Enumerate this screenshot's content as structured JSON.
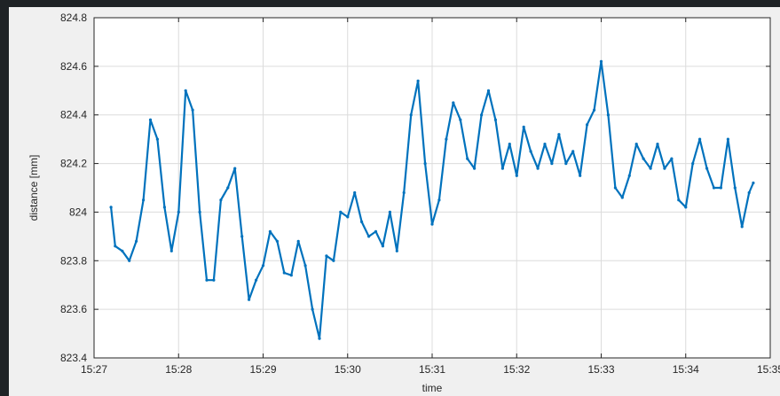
{
  "chart_data": {
    "type": "scatter",
    "title": "",
    "xlabel": "time",
    "ylabel": "distance [mm]",
    "x_unit": "clock time (HH:MM)",
    "xlim": [
      "15:27",
      "15:35"
    ],
    "ylim": [
      823.4,
      824.8
    ],
    "x_ticks": [
      "15:27",
      "15:28",
      "15:29",
      "15:30",
      "15:31",
      "15:32",
      "15:33",
      "15:34",
      "15:35"
    ],
    "y_ticks": [
      823.4,
      823.6,
      823.8,
      824,
      824.2,
      824.4,
      824.6,
      824.8
    ],
    "y_tick_labels": [
      "823.4",
      "823.6",
      "823.8",
      "824",
      "824.2",
      "824.4",
      "824.6",
      "824.8"
    ],
    "grid": true,
    "series": [
      {
        "color": "#0072bd",
        "x": [
          "15:27:12",
          "15:27:15",
          "15:27:20",
          "15:27:25",
          "15:27:30",
          "15:27:35",
          "15:27:40",
          "15:27:45",
          "15:27:50",
          "15:27:55",
          "15:28:00",
          "15:28:05",
          "15:28:10",
          "15:28:15",
          "15:28:20",
          "15:28:25",
          "15:28:30",
          "15:28:35",
          "15:28:40",
          "15:28:45",
          "15:28:50",
          "15:28:55",
          "15:29:00",
          "15:29:05",
          "15:29:10",
          "15:29:15",
          "15:29:20",
          "15:29:25",
          "15:29:30",
          "15:29:35",
          "15:29:40",
          "15:29:45",
          "15:29:50",
          "15:29:55",
          "15:30:00",
          "15:30:05",
          "15:30:10",
          "15:30:15",
          "15:30:20",
          "15:30:25",
          "15:30:30",
          "15:30:35",
          "15:30:40",
          "15:30:45",
          "15:30:50",
          "15:30:55",
          "15:31:00",
          "15:31:05",
          "15:31:10",
          "15:31:15",
          "15:31:20",
          "15:31:25",
          "15:31:30",
          "15:31:35",
          "15:31:40",
          "15:31:45",
          "15:31:50",
          "15:31:55",
          "15:32:00",
          "15:32:05",
          "15:32:10",
          "15:32:15",
          "15:32:20",
          "15:32:25",
          "15:32:30",
          "15:32:35",
          "15:32:40",
          "15:32:45",
          "15:32:50",
          "15:32:55",
          "15:33:00",
          "15:33:05",
          "15:33:10",
          "15:33:15",
          "15:33:20",
          "15:33:25",
          "15:33:30",
          "15:33:35",
          "15:33:40",
          "15:33:45",
          "15:33:50",
          "15:33:55",
          "15:34:00",
          "15:34:05",
          "15:34:10",
          "15:34:15",
          "15:34:20",
          "15:34:25",
          "15:34:30",
          "15:34:35",
          "15:34:40",
          "15:34:45",
          "15:34:48"
        ],
        "values": [
          824.02,
          823.86,
          823.84,
          823.8,
          823.88,
          824.05,
          824.38,
          824.3,
          824.02,
          823.84,
          824.0,
          824.5,
          824.42,
          824.0,
          823.72,
          823.72,
          824.05,
          824.1,
          824.18,
          823.9,
          823.64,
          823.72,
          823.78,
          823.92,
          823.88,
          823.75,
          823.74,
          823.88,
          823.78,
          823.6,
          823.48,
          823.82,
          823.8,
          824.0,
          823.98,
          824.08,
          823.96,
          823.9,
          823.92,
          823.86,
          824.0,
          823.84,
          824.08,
          824.4,
          824.54,
          824.2,
          823.95,
          824.05,
          824.3,
          824.45,
          824.38,
          824.22,
          824.18,
          824.4,
          824.5,
          824.38,
          824.18,
          824.28,
          824.15,
          824.35,
          824.25,
          824.18,
          824.28,
          824.2,
          824.32,
          824.2,
          824.25,
          824.15,
          824.36,
          824.42,
          824.62,
          824.4,
          824.1,
          824.06,
          824.15,
          824.28,
          824.22,
          824.18,
          824.28,
          824.18,
          824.22,
          824.05,
          824.02,
          824.2,
          824.3,
          824.18,
          824.1,
          824.1,
          824.3,
          824.1,
          823.94,
          824.08,
          824.12
        ]
      }
    ]
  }
}
